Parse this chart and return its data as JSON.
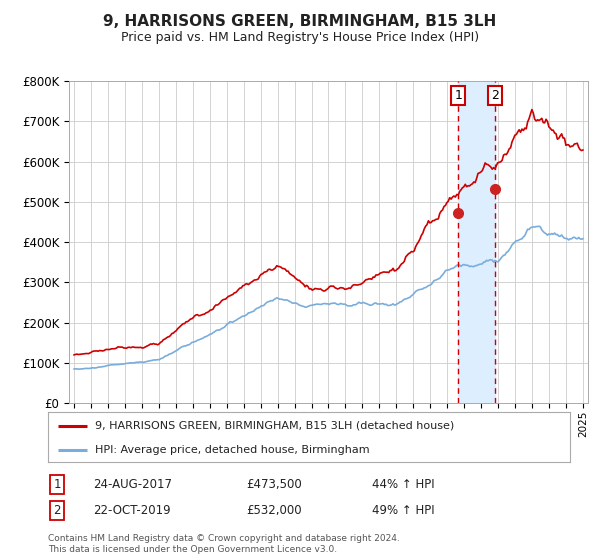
{
  "title": "9, HARRISONS GREEN, BIRMINGHAM, B15 3LH",
  "subtitle": "Price paid vs. HM Land Registry's House Price Index (HPI)",
  "red_label": "9, HARRISONS GREEN, BIRMINGHAM, B15 3LH (detached house)",
  "blue_label": "HPI: Average price, detached house, Birmingham",
  "transaction1": {
    "label": "1",
    "date": "24-AUG-2017",
    "price": "£473,500",
    "hpi": "44% ↑ HPI"
  },
  "transaction2": {
    "label": "2",
    "date": "22-OCT-2019",
    "price": "£532,000",
    "hpi": "49% ↑ HPI"
  },
  "footnote1": "Contains HM Land Registry data © Crown copyright and database right 2024.",
  "footnote2": "This data is licensed under the Open Government Licence v3.0.",
  "ylim": [
    0,
    800000
  ],
  "yticks": [
    0,
    100000,
    200000,
    300000,
    400000,
    500000,
    600000,
    700000,
    800000
  ],
  "ytick_labels": [
    "£0",
    "£100K",
    "£200K",
    "£300K",
    "£400K",
    "£500K",
    "£600K",
    "£700K",
    "£800K"
  ],
  "red_color": "#cc0000",
  "blue_color": "#7aaddb",
  "marker_color": "#cc2222",
  "vline_color": "#cc0000",
  "shade_color": "#ddeeff",
  "grid_color": "#cccccc",
  "bg_color": "#ffffff",
  "transaction1_x": 2017.65,
  "transaction1_y": 473500,
  "transaction2_x": 2019.81,
  "transaction2_y": 532000,
  "xmin": 1995,
  "xmax": 2025
}
